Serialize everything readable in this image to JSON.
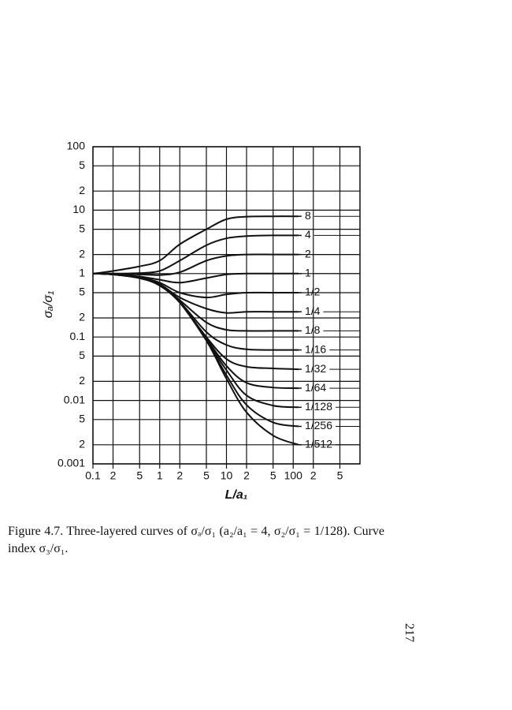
{
  "chart_data": {
    "type": "line",
    "xlabel": "L/a₁",
    "ylabel": "σₐ/σ₁",
    "x": [
      0.1,
      0.2,
      0.5,
      1,
      2,
      5,
      10,
      20,
      50,
      120
    ],
    "xlim": [
      0.1,
      1000
    ],
    "ylim": [
      0.001,
      100
    ],
    "log_x": true,
    "log_y": true,
    "grid": true,
    "xticks": [
      0.1,
      {
        "value": 0.2,
        "label": "2"
      },
      {
        "value": 0.5,
        "label": "5"
      },
      1,
      2,
      5,
      10,
      {
        "value": 20,
        "label": "2"
      },
      {
        "value": 50,
        "label": "5"
      },
      100,
      {
        "value": 200,
        "label": "2"
      },
      {
        "value": 500,
        "label": "5"
      }
    ],
    "yticks": [
      100,
      {
        "value": 50,
        "label": "5"
      },
      {
        "value": 20,
        "label": "2"
      },
      10,
      5,
      2,
      1,
      {
        "value": 0.5,
        "label": "5"
      },
      {
        "value": 0.2,
        "label": "2"
      },
      0.1,
      {
        "value": 0.05,
        "label": "5"
      },
      {
        "value": 0.02,
        "label": "2"
      },
      0.01,
      {
        "value": 0.005,
        "label": "5"
      },
      {
        "value": 0.002,
        "label": "2"
      },
      0.001
    ],
    "series": [
      {
        "name": "8",
        "color": "#111111",
        "values": [
          1,
          1.1,
          1.3,
          1.6,
          2.9,
          5,
          7.2,
          7.9,
          8,
          8
        ]
      },
      {
        "name": "4",
        "color": "#111111",
        "values": [
          1,
          1,
          1.02,
          1.1,
          1.6,
          2.8,
          3.6,
          3.9,
          4,
          4
        ]
      },
      {
        "name": "2",
        "color": "#111111",
        "values": [
          1,
          1,
          0.97,
          0.95,
          1.05,
          1.6,
          1.9,
          2,
          2,
          2
        ]
      },
      {
        "name": "1",
        "color": "#111111",
        "values": [
          1,
          0.98,
          0.9,
          0.8,
          0.72,
          0.85,
          0.97,
          1,
          1,
          1
        ]
      },
      {
        "name": "1/2",
        "color": "#111111",
        "values": [
          1,
          0.97,
          0.87,
          0.72,
          0.5,
          0.42,
          0.47,
          0.5,
          0.5,
          0.5
        ]
      },
      {
        "name": "1/4",
        "color": "#111111",
        "values": [
          1,
          0.97,
          0.85,
          0.68,
          0.42,
          0.28,
          0.24,
          0.25,
          0.25,
          0.25
        ]
      },
      {
        "name": "1/8",
        "color": "#111111",
        "values": [
          1,
          0.97,
          0.85,
          0.66,
          0.38,
          0.17,
          0.13,
          0.125,
          0.125,
          0.125
        ]
      },
      {
        "name": "1/16",
        "color": "#111111",
        "values": [
          1,
          0.97,
          0.85,
          0.65,
          0.36,
          0.12,
          0.075,
          0.064,
          0.0625,
          0.0625
        ]
      },
      {
        "name": "1/32",
        "color": "#111111",
        "values": [
          1,
          0.97,
          0.85,
          0.65,
          0.35,
          0.1,
          0.045,
          0.034,
          0.032,
          0.031
        ]
      },
      {
        "name": "1/64",
        "color": "#111111",
        "values": [
          1,
          0.97,
          0.85,
          0.65,
          0.35,
          0.095,
          0.035,
          0.019,
          0.016,
          0.0156
        ]
      },
      {
        "name": "1/128",
        "color": "#111111",
        "values": [
          1,
          0.97,
          0.85,
          0.65,
          0.35,
          0.09,
          0.03,
          0.012,
          0.0083,
          0.0078
        ]
      },
      {
        "name": "1/256",
        "color": "#111111",
        "values": [
          1,
          0.97,
          0.85,
          0.65,
          0.35,
          0.088,
          0.025,
          0.0085,
          0.0045,
          0.0039
        ]
      },
      {
        "name": "1/512",
        "color": "#111111",
        "values": [
          1,
          0.97,
          0.85,
          0.65,
          0.35,
          0.088,
          0.022,
          0.0065,
          0.0028,
          0.002
        ]
      }
    ]
  },
  "caption": "Figure 4.7. Three-layered curves of σₐ/σ₁ (a₂/a₁ = 4, σ₂/σ₁ = 1/128). Curve index σ₃/σ₁.",
  "page_number": "217"
}
